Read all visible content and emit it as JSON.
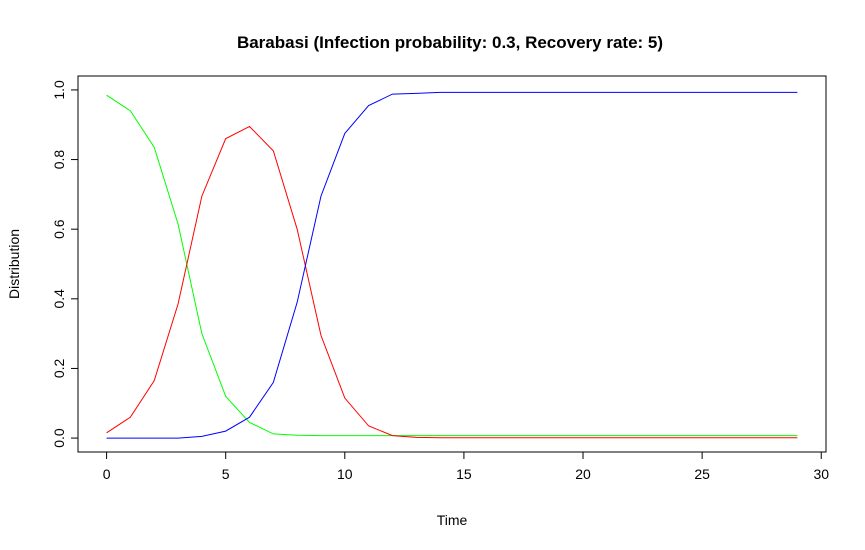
{
  "chart_data": {
    "type": "line",
    "title": "Barabasi (Infection probability: 0.3, Recovery rate: 5)",
    "xlabel": "Time",
    "ylabel": "Distribution",
    "xlim": [
      -1.2,
      30.2
    ],
    "ylim": [
      -0.04,
      1.04
    ],
    "xticks": [
      0,
      5,
      10,
      15,
      20,
      25,
      30
    ],
    "yticks": [
      0.0,
      0.2,
      0.4,
      0.6,
      0.8,
      1.0
    ],
    "xtick_labels": [
      "0",
      "5",
      "10",
      "15",
      "20",
      "25",
      "30"
    ],
    "ytick_labels": [
      "0.0",
      "0.2",
      "0.4",
      "0.6",
      "0.8",
      "1.0"
    ],
    "grid": false,
    "x": [
      0,
      1,
      2,
      3,
      4,
      5,
      6,
      7,
      8,
      9,
      10,
      11,
      12,
      13,
      14,
      15,
      16,
      17,
      18,
      19,
      20,
      21,
      22,
      23,
      24,
      25,
      26,
      27,
      28,
      29
    ],
    "series": [
      {
        "color": "#00ff00",
        "values": [
          0.985,
          0.94,
          0.835,
          0.615,
          0.3,
          0.12,
          0.045,
          0.012,
          0.008,
          0.007,
          0.007,
          0.007,
          0.007,
          0.007,
          0.007,
          0.007,
          0.007,
          0.007,
          0.007,
          0.007,
          0.007,
          0.007,
          0.007,
          0.007,
          0.007,
          0.007,
          0.007,
          0.007,
          0.007,
          0.007
        ]
      },
      {
        "color": "#ff0000",
        "values": [
          0.015,
          0.06,
          0.165,
          0.385,
          0.695,
          0.86,
          0.895,
          0.825,
          0.6,
          0.295,
          0.115,
          0.035,
          0.007,
          0.002,
          0.001,
          0.001,
          0.001,
          0.001,
          0.001,
          0.001,
          0.001,
          0.001,
          0.001,
          0.001,
          0.001,
          0.001,
          0.001,
          0.001,
          0.001,
          0.001
        ]
      },
      {
        "color": "#0000ff",
        "values": [
          0.0,
          0.0,
          0.0,
          0.0,
          0.005,
          0.02,
          0.06,
          0.16,
          0.39,
          0.695,
          0.875,
          0.955,
          0.988,
          0.99,
          0.993,
          0.993,
          0.993,
          0.993,
          0.993,
          0.993,
          0.993,
          0.993,
          0.993,
          0.993,
          0.993,
          0.993,
          0.993,
          0.993,
          0.993,
          0.993
        ]
      }
    ]
  }
}
